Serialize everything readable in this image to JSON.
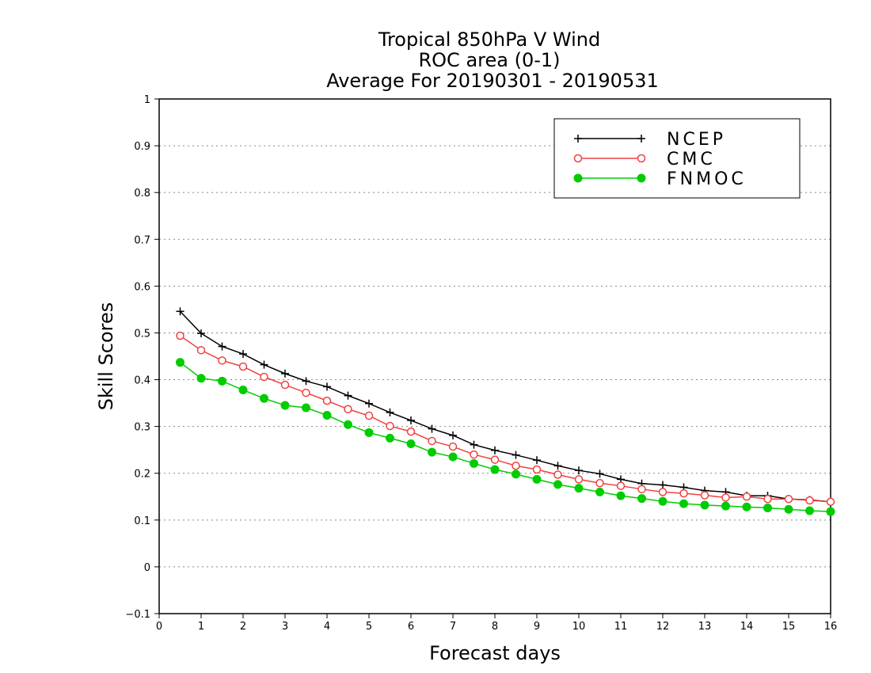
{
  "chart_data": {
    "type": "line",
    "title_lines": [
      "Tropical 850hPa V Wind",
      "ROC area (0-1)",
      "Average For 20190301 - 20190531"
    ],
    "xlabel": "Forecast days",
    "ylabel": "Skill Scores",
    "xlim": [
      0,
      16
    ],
    "ylim": [
      -0.1,
      1
    ],
    "x_ticks": [
      "0",
      "1",
      "2",
      "3",
      "4",
      "5",
      "6",
      "7",
      "8",
      "9",
      "10",
      "11",
      "12",
      "13",
      "14",
      "15",
      "16"
    ],
    "y_ticks": [
      "−0.1",
      "0",
      "0.1",
      "0.2",
      "0.3",
      "0.4",
      "0.5",
      "0.6",
      "0.7",
      "0.8",
      "0.9",
      "1"
    ],
    "grid": "horizontal dotted",
    "legend_position": "top-right",
    "x": [
      0.5,
      1,
      1.5,
      2,
      2.5,
      3,
      3.5,
      4,
      4.5,
      5,
      5.5,
      6,
      6.5,
      7,
      7.5,
      8,
      8.5,
      9,
      9.5,
      10,
      10.5,
      11,
      11.5,
      12,
      12.5,
      13,
      13.5,
      14,
      14.5,
      15,
      15.5,
      16
    ],
    "series": [
      {
        "name": "NCEP",
        "color": "#000000",
        "marker": "plus",
        "values": [
          0.546,
          0.499,
          0.471,
          0.455,
          0.432,
          0.413,
          0.397,
          0.385,
          0.366,
          0.349,
          0.33,
          0.313,
          0.295,
          0.281,
          0.261,
          0.249,
          0.239,
          0.228,
          0.216,
          0.206,
          0.199,
          0.187,
          0.178,
          0.175,
          0.17,
          0.163,
          0.16,
          0.152,
          0.152,
          0.145,
          0.143,
          0.139
        ]
      },
      {
        "name": "CMC",
        "color": "#f04040",
        "marker": "open-circle",
        "values": [
          0.494,
          0.463,
          0.441,
          0.428,
          0.406,
          0.389,
          0.372,
          0.355,
          0.337,
          0.323,
          0.301,
          0.289,
          0.269,
          0.257,
          0.24,
          0.229,
          0.216,
          0.208,
          0.197,
          0.187,
          0.179,
          0.173,
          0.166,
          0.16,
          0.157,
          0.153,
          0.148,
          0.15,
          0.145,
          0.145,
          0.142,
          0.139
        ]
      },
      {
        "name": "FNMOC",
        "color": "#00cc00",
        "marker": "filled-circle",
        "values": [
          0.437,
          0.403,
          0.397,
          0.378,
          0.36,
          0.345,
          0.34,
          0.324,
          0.304,
          0.287,
          0.275,
          0.263,
          0.245,
          0.235,
          0.221,
          0.208,
          0.198,
          0.187,
          0.176,
          0.168,
          0.16,
          0.152,
          0.146,
          0.14,
          0.135,
          0.132,
          0.13,
          0.128,
          0.126,
          0.123,
          0.12,
          0.118
        ]
      }
    ]
  }
}
